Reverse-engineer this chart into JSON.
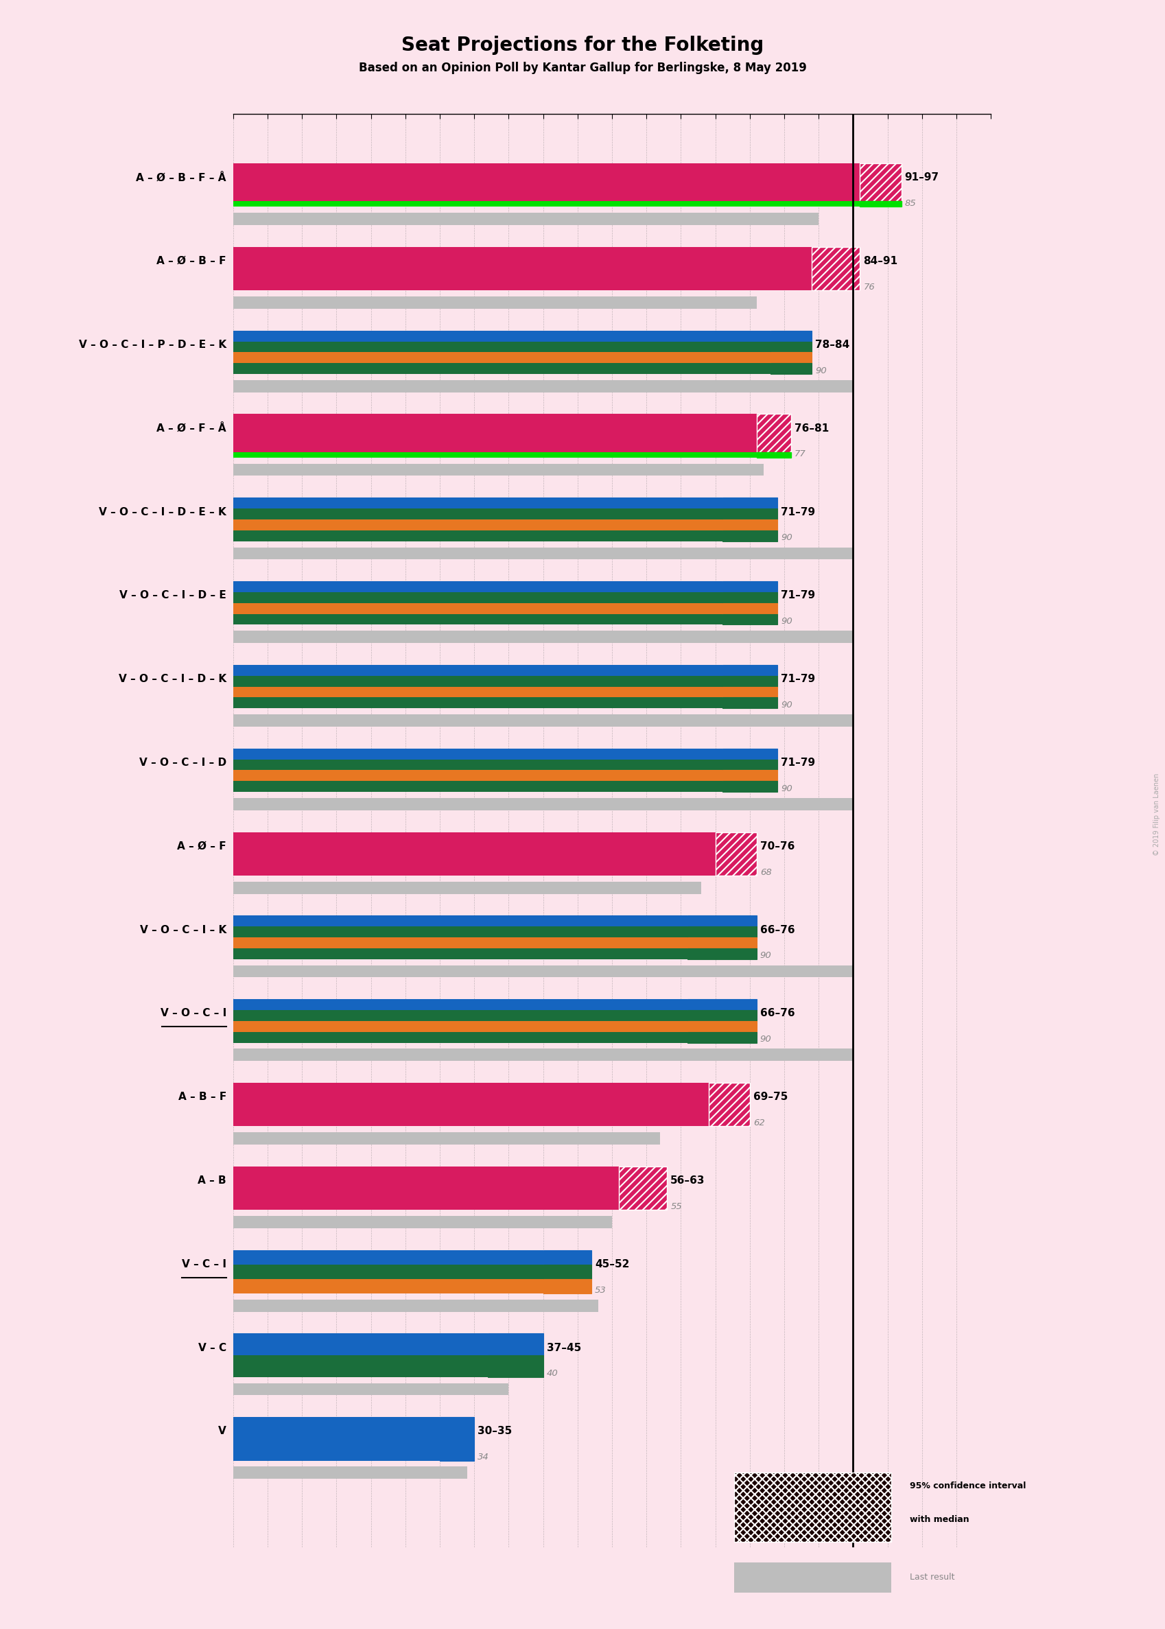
{
  "title": "Seat Projections for the Folketing",
  "subtitle": "Based on an Opinion Poll by Kantar Gallup for Berlingske, 8 May 2019",
  "copyright": "© 2019 Filip van Laenen",
  "background_color": "#fce4ec",
  "coalitions": [
    {
      "label": "A – Ø – B – F – Å",
      "ci_low": 91,
      "ci_high": 97,
      "last": 85,
      "underline": false,
      "type": "left_green"
    },
    {
      "label": "A – Ø – B – F",
      "ci_low": 84,
      "ci_high": 91,
      "last": 76,
      "underline": false,
      "type": "left"
    },
    {
      "label": "V – O – C – I – P – D – E – K",
      "ci_low": 78,
      "ci_high": 84,
      "last": 90,
      "underline": false,
      "type": "right"
    },
    {
      "label": "A – Ø – F – Å",
      "ci_low": 76,
      "ci_high": 81,
      "last": 77,
      "underline": false,
      "type": "left_green"
    },
    {
      "label": "V – O – C – I – D – E – K",
      "ci_low": 71,
      "ci_high": 79,
      "last": 90,
      "underline": false,
      "type": "right"
    },
    {
      "label": "V – O – C – I – D – E",
      "ci_low": 71,
      "ci_high": 79,
      "last": 90,
      "underline": false,
      "type": "right"
    },
    {
      "label": "V – O – C – I – D – K",
      "ci_low": 71,
      "ci_high": 79,
      "last": 90,
      "underline": false,
      "type": "right"
    },
    {
      "label": "V – O – C – I – D",
      "ci_low": 71,
      "ci_high": 79,
      "last": 90,
      "underline": false,
      "type": "right"
    },
    {
      "label": "A – Ø – F",
      "ci_low": 70,
      "ci_high": 76,
      "last": 68,
      "underline": false,
      "type": "left"
    },
    {
      "label": "V – O – C – I – K",
      "ci_low": 66,
      "ci_high": 76,
      "last": 90,
      "underline": false,
      "type": "right"
    },
    {
      "label": "V – O – C – I",
      "ci_low": 66,
      "ci_high": 76,
      "last": 90,
      "underline": true,
      "type": "right"
    },
    {
      "label": "A – B – F",
      "ci_low": 69,
      "ci_high": 75,
      "last": 62,
      "underline": false,
      "type": "left"
    },
    {
      "label": "A – B",
      "ci_low": 56,
      "ci_high": 63,
      "last": 55,
      "underline": false,
      "type": "left"
    },
    {
      "label": "V – C – I",
      "ci_low": 45,
      "ci_high": 52,
      "last": 53,
      "underline": true,
      "type": "right_small3"
    },
    {
      "label": "V – C",
      "ci_low": 37,
      "ci_high": 45,
      "last": 40,
      "underline": false,
      "type": "right_small2"
    },
    {
      "label": "V",
      "ci_low": 30,
      "ci_high": 35,
      "last": 34,
      "underline": false,
      "type": "right_small1"
    }
  ],
  "xmax": 110,
  "majority_line": 90,
  "pink": "#d81b60",
  "green": "#00e000",
  "blue": "#1565c0",
  "dark_green": "#1a6e3b",
  "orange": "#e87722",
  "gray": "#bdbdbd"
}
